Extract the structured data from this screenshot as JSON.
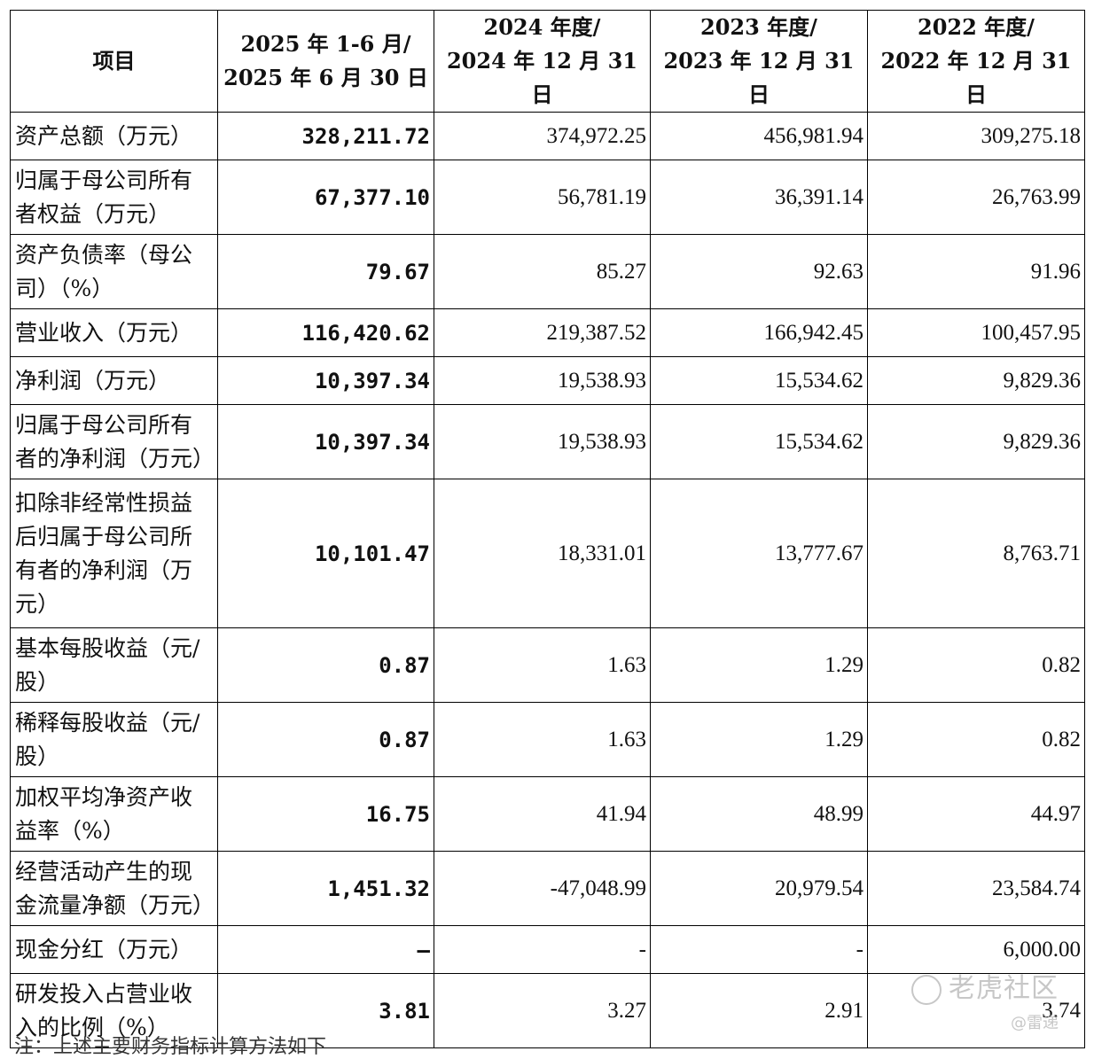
{
  "header": {
    "item": "项目",
    "cols": [
      {
        "line1": "2025 年 1-6 月/",
        "line2": "2025 年 6 月 30 日"
      },
      {
        "line1": "2024 年度/",
        "line2": "2024 年 12 月 31 日"
      },
      {
        "line1": "2023 年度/",
        "line2": "2023 年 12 月 31 日"
      },
      {
        "line1": "2022 年度/",
        "line2": "2022 年 12 月 31 日"
      }
    ]
  },
  "rows": [
    {
      "label": [
        "资产总额（万元）"
      ],
      "v": [
        "328,211.72",
        "374,972.25",
        "456,981.94",
        "309,275.18"
      ]
    },
    {
      "label": [
        "归属于母公司所有",
        "者权益（万元）"
      ],
      "v": [
        "67,377.10",
        "56,781.19",
        "36,391.14",
        "26,763.99"
      ]
    },
    {
      "label": [
        "资产负债率（母公",
        "司）（%）"
      ],
      "v": [
        "79.67",
        "85.27",
        "92.63",
        "91.96"
      ]
    },
    {
      "label": [
        "营业收入（万元）"
      ],
      "v": [
        "116,420.62",
        "219,387.52",
        "166,942.45",
        "100,457.95"
      ]
    },
    {
      "label": [
        "净利润（万元）"
      ],
      "v": [
        "10,397.34",
        "19,538.93",
        "15,534.62",
        "9,829.36"
      ]
    },
    {
      "label": [
        "归属于母公司所有",
        "者的净利润（万元）"
      ],
      "v": [
        "10,397.34",
        "19,538.93",
        "15,534.62",
        "9,829.36"
      ]
    },
    {
      "label": [
        "扣除非经常性损益",
        "后归属于母公司所",
        "有者的净利润（万",
        "元）"
      ],
      "v": [
        "10,101.47",
        "18,331.01",
        "13,777.67",
        "8,763.71"
      ]
    },
    {
      "label": [
        "基本每股收益（元/",
        "股）"
      ],
      "v": [
        "0.87",
        "1.63",
        "1.29",
        "0.82"
      ]
    },
    {
      "label": [
        "稀释每股收益（元/",
        "股）"
      ],
      "v": [
        "0.87",
        "1.63",
        "1.29",
        "0.82"
      ]
    },
    {
      "label": [
        "加权平均净资产收",
        "益率（%）"
      ],
      "v": [
        "16.75",
        "41.94",
        "48.99",
        "44.97"
      ]
    },
    {
      "label": [
        "经营活动产生的现",
        "金流量净额（万元）"
      ],
      "v": [
        "1,451.32",
        "-47,048.99",
        "20,979.54",
        "23,584.74"
      ]
    },
    {
      "label": [
        "现金分红（万元）"
      ],
      "v": [
        "–",
        "-",
        "-",
        "6,000.00"
      ]
    },
    {
      "label": [
        "研发投入占营业收",
        "入的比例（%）"
      ],
      "v": [
        "3.81",
        "3.27",
        "2.91",
        "3.74"
      ]
    }
  ],
  "footnote": "注：上述主要财务指标计算方法如下",
  "watermark": {
    "main": "老虎社区",
    "sub": "@雷递"
  }
}
